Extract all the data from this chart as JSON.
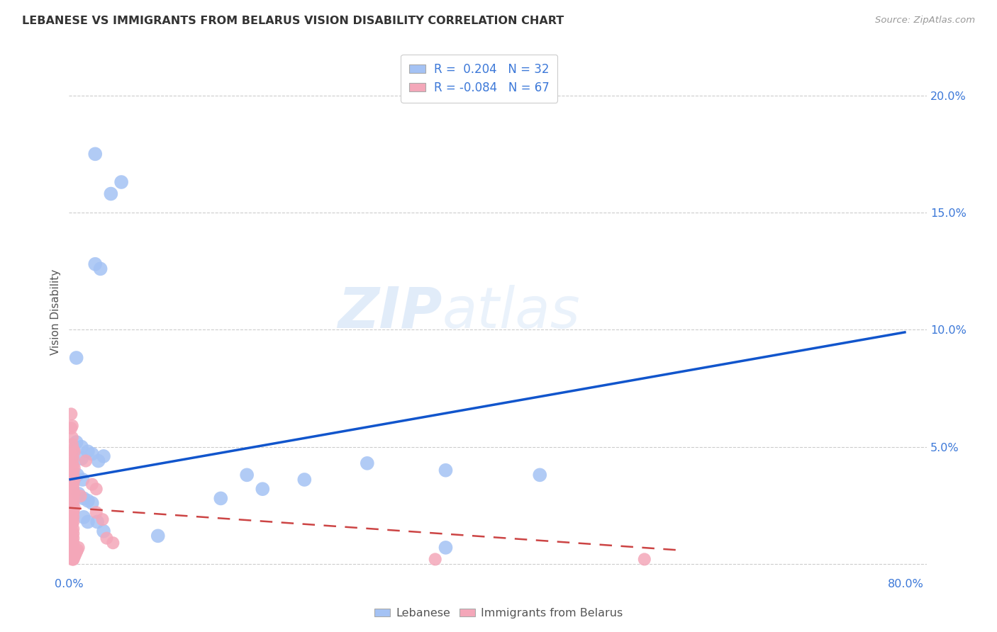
{
  "title": "LEBANESE VS IMMIGRANTS FROM BELARUS VISION DISABILITY CORRELATION CHART",
  "source": "Source: ZipAtlas.com",
  "ylabel": "Vision Disability",
  "xlim": [
    0.0,
    0.82
  ],
  "ylim": [
    -0.005,
    0.22
  ],
  "blue_color": "#a4c2f4",
  "pink_color": "#f4a7b9",
  "blue_line_color": "#1155cc",
  "pink_line_color": "#cc4444",
  "watermark_zip": "ZIP",
  "watermark_atlas": "atlas",
  "lebanese_points": [
    [
      0.025,
      0.175
    ],
    [
      0.05,
      0.163
    ],
    [
      0.04,
      0.158
    ],
    [
      0.025,
      0.128
    ],
    [
      0.03,
      0.126
    ],
    [
      0.007,
      0.088
    ],
    [
      0.007,
      0.052
    ],
    [
      0.012,
      0.05
    ],
    [
      0.018,
      0.048
    ],
    [
      0.022,
      0.047
    ],
    [
      0.012,
      0.045
    ],
    [
      0.028,
      0.044
    ],
    [
      0.033,
      0.046
    ],
    [
      0.008,
      0.038
    ],
    [
      0.013,
      0.036
    ],
    [
      0.009,
      0.03
    ],
    [
      0.014,
      0.028
    ],
    [
      0.018,
      0.027
    ],
    [
      0.022,
      0.026
    ],
    [
      0.014,
      0.02
    ],
    [
      0.018,
      0.018
    ],
    [
      0.027,
      0.018
    ],
    [
      0.033,
      0.014
    ],
    [
      0.085,
      0.012
    ],
    [
      0.17,
      0.038
    ],
    [
      0.225,
      0.036
    ],
    [
      0.285,
      0.043
    ],
    [
      0.36,
      0.04
    ],
    [
      0.45,
      0.038
    ],
    [
      0.36,
      0.007
    ],
    [
      0.185,
      0.032
    ],
    [
      0.145,
      0.028
    ]
  ],
  "belarus_points": [
    [
      0.002,
      0.058
    ],
    [
      0.003,
      0.054
    ],
    [
      0.003,
      0.051
    ],
    [
      0.004,
      0.049
    ],
    [
      0.005,
      0.048
    ],
    [
      0.003,
      0.046
    ],
    [
      0.004,
      0.045
    ],
    [
      0.003,
      0.043
    ],
    [
      0.004,
      0.042
    ],
    [
      0.005,
      0.041
    ],
    [
      0.003,
      0.04
    ],
    [
      0.004,
      0.039
    ],
    [
      0.004,
      0.037
    ],
    [
      0.005,
      0.036
    ],
    [
      0.003,
      0.035
    ],
    [
      0.004,
      0.034
    ],
    [
      0.003,
      0.033
    ],
    [
      0.004,
      0.032
    ],
    [
      0.004,
      0.031
    ],
    [
      0.005,
      0.03
    ],
    [
      0.003,
      0.029
    ],
    [
      0.004,
      0.028
    ],
    [
      0.003,
      0.027
    ],
    [
      0.004,
      0.026
    ],
    [
      0.003,
      0.024
    ],
    [
      0.004,
      0.023
    ],
    [
      0.004,
      0.022
    ],
    [
      0.003,
      0.021
    ],
    [
      0.004,
      0.02
    ],
    [
      0.003,
      0.019
    ],
    [
      0.004,
      0.018
    ],
    [
      0.003,
      0.017
    ],
    [
      0.004,
      0.015
    ],
    [
      0.003,
      0.014
    ],
    [
      0.004,
      0.013
    ],
    [
      0.003,
      0.012
    ],
    [
      0.004,
      0.011
    ],
    [
      0.003,
      0.01
    ],
    [
      0.004,
      0.009
    ],
    [
      0.004,
      0.008
    ],
    [
      0.003,
      0.007
    ],
    [
      0.004,
      0.006
    ],
    [
      0.003,
      0.005
    ],
    [
      0.004,
      0.004
    ],
    [
      0.003,
      0.003
    ],
    [
      0.004,
      0.003
    ],
    [
      0.004,
      0.002
    ],
    [
      0.003,
      0.002
    ],
    [
      0.004,
      0.002
    ],
    [
      0.005,
      0.003
    ],
    [
      0.006,
      0.004
    ],
    [
      0.007,
      0.005
    ],
    [
      0.008,
      0.006
    ],
    [
      0.009,
      0.007
    ],
    [
      0.016,
      0.044
    ],
    [
      0.022,
      0.034
    ],
    [
      0.026,
      0.032
    ],
    [
      0.032,
      0.019
    ],
    [
      0.036,
      0.011
    ],
    [
      0.042,
      0.009
    ],
    [
      0.002,
      0.064
    ],
    [
      0.003,
      0.059
    ],
    [
      0.011,
      0.029
    ],
    [
      0.026,
      0.022
    ],
    [
      0.35,
      0.002
    ],
    [
      0.55,
      0.002
    ],
    [
      0.005,
      0.024
    ]
  ],
  "blue_trend_x": [
    0.0,
    0.8
  ],
  "blue_trend_y": [
    0.036,
    0.099
  ],
  "pink_trend_x": [
    0.0,
    0.58
  ],
  "pink_trend_y": [
    0.024,
    0.006
  ]
}
